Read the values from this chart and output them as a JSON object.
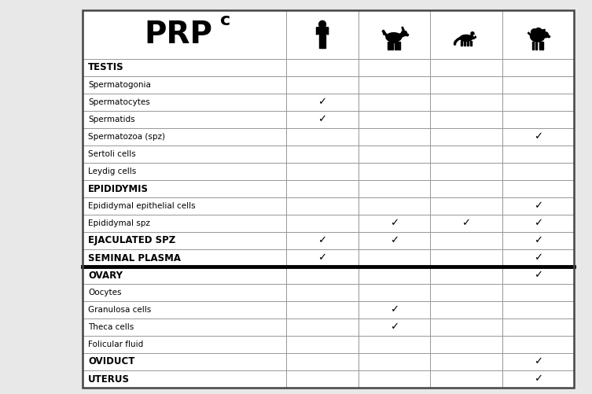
{
  "title_cell": "PRP",
  "title_superscript": "c",
  "rows": [
    {
      "label": "TESTIS",
      "bold": true,
      "checks": [
        0,
        0,
        0,
        0
      ]
    },
    {
      "label": "Spermatogonia",
      "bold": false,
      "checks": [
        0,
        0,
        0,
        0
      ]
    },
    {
      "label": "Spermatocytes",
      "bold": false,
      "checks": [
        1,
        0,
        0,
        0
      ]
    },
    {
      "label": "Spermatids",
      "bold": false,
      "checks": [
        1,
        0,
        0,
        0
      ]
    },
    {
      "label": "Spermatozoa (spz)",
      "bold": false,
      "checks": [
        0,
        0,
        0,
        1
      ]
    },
    {
      "label": "Sertoli cells",
      "bold": false,
      "checks": [
        0,
        0,
        0,
        0
      ]
    },
    {
      "label": "Leydig cells",
      "bold": false,
      "checks": [
        0,
        0,
        0,
        0
      ]
    },
    {
      "label": "EPIDIDYMIS",
      "bold": true,
      "checks": [
        0,
        0,
        0,
        0
      ]
    },
    {
      "label": "Epididymal epithelial cells",
      "bold": false,
      "checks": [
        0,
        0,
        0,
        1
      ]
    },
    {
      "label": "Epididymal spz",
      "bold": false,
      "checks": [
        0,
        1,
        1,
        1
      ]
    },
    {
      "label": "EJACULATED SPZ",
      "bold": true,
      "checks": [
        1,
        1,
        0,
        1
      ]
    },
    {
      "label": "SEMINAL PLASMA",
      "bold": true,
      "checks": [
        1,
        0,
        0,
        1
      ],
      "thick_bottom": true
    },
    {
      "label": "OVARY",
      "bold": true,
      "checks": [
        0,
        0,
        0,
        1
      ]
    },
    {
      "label": "Oocytes",
      "bold": false,
      "checks": [
        0,
        0,
        0,
        0
      ]
    },
    {
      "label": "Granulosa cells",
      "bold": false,
      "checks": [
        0,
        1,
        0,
        0
      ]
    },
    {
      "label": "Theca cells",
      "bold": false,
      "checks": [
        0,
        1,
        0,
        0
      ]
    },
    {
      "label": "Folicular fluid",
      "bold": false,
      "checks": [
        0,
        0,
        0,
        0
      ]
    },
    {
      "label": "OVIDUCT",
      "bold": true,
      "checks": [
        0,
        0,
        0,
        1
      ]
    },
    {
      "label": "UTERUS",
      "bold": true,
      "checks": [
        0,
        0,
        0,
        1
      ]
    }
  ],
  "fig_bg": "#e8e8e8",
  "table_bg": "#ffffff",
  "grid_color": "#999999",
  "thick_color": "#000000",
  "text_color": "#000000"
}
